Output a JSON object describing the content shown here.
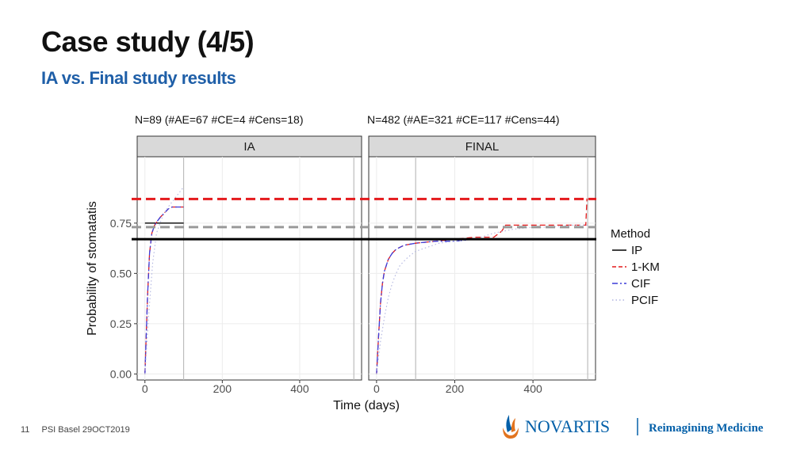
{
  "slide": {
    "title": "Case study (4/5)",
    "subtitle": "IA vs. Final study results",
    "page_number": "11",
    "footer_text": "PSI Basel 29OCT2019",
    "brand_name": "NOVARTIS",
    "tagline": "Reimagining Medicine",
    "colors": {
      "title": "#111111",
      "subtitle": "#1f5fa8",
      "brand": "#0460a9",
      "logo_orange": "#e2741f"
    }
  },
  "annotations": {
    "ia": "N=89  (#AE=67 #CE=4  #Cens=18)",
    "final": "N=482  (#AE=321 #CE=117  #Cens=44)"
  },
  "chart_data": {
    "type": "line",
    "facets": [
      "IA",
      "FINAL"
    ],
    "xlabel": "Time (days)",
    "ylabel": "Probability of stomatatis",
    "xlim": [
      -20,
      560
    ],
    "ylim": [
      -0.03,
      1.08
    ],
    "x_ticks": [
      0,
      200,
      400
    ],
    "x_tick_labels": [
      "0",
      "200",
      "400"
    ],
    "y_ticks": [
      0,
      0.25,
      0.5,
      0.75
    ],
    "y_tick_labels": [
      "0.00",
      "0.25",
      "0.50",
      "0.75"
    ],
    "grid": true,
    "vertical_reference_lines": [
      100,
      540
    ],
    "horizontal_reference_lines": [
      {
        "y": 0.87,
        "color": "#e41a1c",
        "style": "dashed"
      },
      {
        "y": 0.73,
        "color": "#999999",
        "style": "dashed"
      },
      {
        "y": 0.67,
        "color": "#000000",
        "style": "solid"
      }
    ],
    "legend": {
      "title": "Method",
      "position": "right",
      "entries": [
        {
          "name": "IP",
          "color": "#000000",
          "style": "solid"
        },
        {
          "name": "1-KM",
          "color": "#e41a1c",
          "style": "dashed"
        },
        {
          "name": "CIF",
          "color": "#3b3bd9",
          "style": "dashdot"
        },
        {
          "name": "PCIF",
          "color": "#b0b4e0",
          "style": "dotted"
        }
      ]
    },
    "panels": [
      {
        "facet": "IA",
        "series": [
          {
            "name": "IP",
            "x": [
              0,
              100
            ],
            "y": [
              0.75,
              0.75
            ]
          },
          {
            "name": "1-KM",
            "x": [
              0,
              3,
              7,
              12,
              18,
              25,
              32,
              40,
              50,
              60,
              70,
              80,
              100
            ],
            "y": [
              0.0,
              0.17,
              0.4,
              0.6,
              0.7,
              0.74,
              0.76,
              0.78,
              0.8,
              0.82,
              0.83,
              0.83,
              0.83
            ]
          },
          {
            "name": "CIF",
            "x": [
              0,
              3,
              7,
              12,
              18,
              25,
              32,
              40,
              50,
              60,
              70,
              80,
              100
            ],
            "y": [
              0.0,
              0.17,
              0.4,
              0.6,
              0.7,
              0.74,
              0.76,
              0.78,
              0.8,
              0.82,
              0.83,
              0.83,
              0.83
            ]
          },
          {
            "name": "PCIF",
            "x": [
              0,
              10,
              20,
              30,
              45,
              60,
              80,
              100
            ],
            "y": [
              0.0,
              0.3,
              0.55,
              0.7,
              0.78,
              0.83,
              0.88,
              0.93
            ]
          }
        ]
      },
      {
        "facet": "FINAL",
        "series": [
          {
            "name": "1-KM",
            "x": [
              0,
              5,
              10,
              15,
              20,
              30,
              40,
              50,
              70,
              100,
              150,
              200,
              250,
              300,
              320,
              330,
              400,
              450,
              500,
              535,
              538,
              540
            ],
            "y": [
              0.0,
              0.18,
              0.35,
              0.45,
              0.51,
              0.57,
              0.6,
              0.62,
              0.64,
              0.65,
              0.66,
              0.67,
              0.68,
              0.68,
              0.71,
              0.74,
              0.74,
              0.74,
              0.74,
              0.74,
              0.87,
              0.87
            ]
          },
          {
            "name": "CIF",
            "x": [
              0,
              5,
              10,
              15,
              20,
              30,
              40,
              50,
              70,
              100,
              150,
              200,
              250,
              300,
              540
            ],
            "y": [
              0.0,
              0.18,
              0.35,
              0.45,
              0.51,
              0.57,
              0.6,
              0.62,
              0.64,
              0.65,
              0.66,
              0.66,
              0.67,
              0.67,
              0.67
            ]
          },
          {
            "name": "PCIF",
            "x": [
              0,
              10,
              20,
              30,
              40,
              50,
              60,
              80,
              100,
              130,
              160,
              200,
              250,
              300,
              350,
              400,
              450,
              500,
              540
            ],
            "y": [
              0.0,
              0.16,
              0.28,
              0.38,
              0.45,
              0.5,
              0.54,
              0.58,
              0.61,
              0.63,
              0.65,
              0.66,
              0.67,
              0.7,
              0.72,
              0.73,
              0.73,
              0.74,
              0.74
            ]
          }
        ]
      }
    ]
  }
}
